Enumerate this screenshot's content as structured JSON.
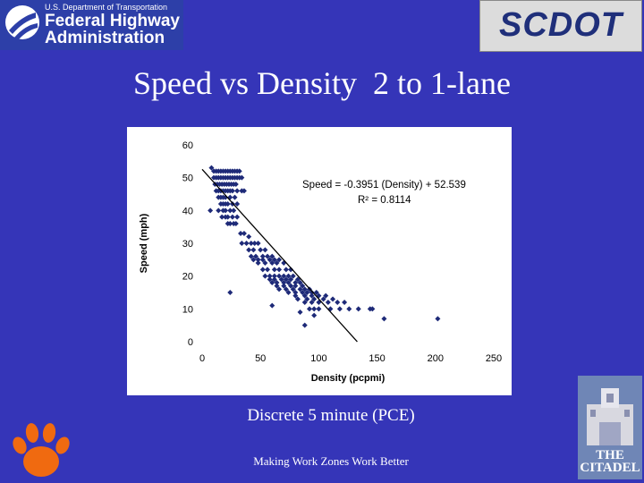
{
  "logos": {
    "fhwa_line1": "U.S. Department of Transportation",
    "fhwa_line2": "Federal Highway",
    "fhwa_line3": "Administration",
    "scdot": "SCDOT",
    "citadel": "THE\nCITADEL"
  },
  "slide": {
    "title": "Speed vs Density  2 to 1-lane",
    "subtitle": "Discrete 5 minute (PCE)",
    "footer": "Making Work Zones Work Better"
  },
  "colors": {
    "background": "#3535b8",
    "points": "#1e2a78",
    "trend_line": "#000000"
  },
  "chart_data": {
    "type": "scatter",
    "xlabel": "Density (pcpmi)",
    "ylabel": "Speed (mph)",
    "xlim": [
      0,
      250
    ],
    "ylim": [
      0,
      60
    ],
    "xticks": [
      "0",
      "50",
      "100",
      "150",
      "200",
      "250"
    ],
    "yticks": [
      "0",
      "10",
      "20",
      "30",
      "40",
      "50",
      "60"
    ],
    "equation": "Speed = -0.3951 (Density) + 52.539",
    "r_squared": "R² = 0.8114",
    "trendline": {
      "slope": -0.3951,
      "intercept": 52.539,
      "x": [
        0,
        133
      ]
    },
    "points": [
      [
        8,
        53
      ],
      [
        10,
        52
      ],
      [
        12,
        52
      ],
      [
        14,
        52
      ],
      [
        16,
        52
      ],
      [
        18,
        52
      ],
      [
        20,
        52
      ],
      [
        22,
        52
      ],
      [
        24,
        52
      ],
      [
        26,
        52
      ],
      [
        28,
        52
      ],
      [
        30,
        52
      ],
      [
        32,
        52
      ],
      [
        10,
        50
      ],
      [
        12,
        50
      ],
      [
        14,
        50
      ],
      [
        16,
        50
      ],
      [
        18,
        50
      ],
      [
        20,
        50
      ],
      [
        22,
        50
      ],
      [
        24,
        50
      ],
      [
        26,
        50
      ],
      [
        28,
        50
      ],
      [
        30,
        50
      ],
      [
        32,
        50
      ],
      [
        34,
        50
      ],
      [
        11,
        48
      ],
      [
        13,
        48
      ],
      [
        15,
        48
      ],
      [
        17,
        48
      ],
      [
        19,
        48
      ],
      [
        21,
        48
      ],
      [
        23,
        48
      ],
      [
        25,
        48
      ],
      [
        27,
        48
      ],
      [
        29,
        48
      ],
      [
        12,
        46
      ],
      [
        14,
        46
      ],
      [
        16,
        46
      ],
      [
        18,
        46
      ],
      [
        20,
        46
      ],
      [
        22,
        46
      ],
      [
        24,
        46
      ],
      [
        26,
        46
      ],
      [
        30,
        46
      ],
      [
        34,
        46
      ],
      [
        36,
        46
      ],
      [
        14,
        44
      ],
      [
        16,
        44
      ],
      [
        18,
        44
      ],
      [
        20,
        44
      ],
      [
        24,
        44
      ],
      [
        28,
        44
      ],
      [
        16,
        42
      ],
      [
        18,
        42
      ],
      [
        20,
        42
      ],
      [
        22,
        42
      ],
      [
        26,
        42
      ],
      [
        30,
        42
      ],
      [
        7,
        40
      ],
      [
        14,
        40
      ],
      [
        18,
        40
      ],
      [
        20,
        40
      ],
      [
        24,
        40
      ],
      [
        27,
        40
      ],
      [
        17,
        38
      ],
      [
        20,
        38
      ],
      [
        22,
        38
      ],
      [
        26,
        38
      ],
      [
        30,
        38
      ],
      [
        22,
        36
      ],
      [
        24,
        36
      ],
      [
        27,
        36
      ],
      [
        29,
        36
      ],
      [
        33,
        33
      ],
      [
        36,
        33
      ],
      [
        40,
        32
      ],
      [
        34,
        30
      ],
      [
        38,
        30
      ],
      [
        42,
        30
      ],
      [
        45,
        30
      ],
      [
        48,
        30
      ],
      [
        40,
        28
      ],
      [
        44,
        28
      ],
      [
        50,
        28
      ],
      [
        54,
        28
      ],
      [
        42,
        26
      ],
      [
        46,
        26
      ],
      [
        52,
        26
      ],
      [
        56,
        26
      ],
      [
        60,
        26
      ],
      [
        44,
        25
      ],
      [
        48,
        25
      ],
      [
        52,
        25
      ],
      [
        58,
        25
      ],
      [
        62,
        25
      ],
      [
        66,
        25
      ],
      [
        48,
        24
      ],
      [
        54,
        24
      ],
      [
        60,
        24
      ],
      [
        64,
        24
      ],
      [
        70,
        24
      ],
      [
        52,
        22
      ],
      [
        56,
        22
      ],
      [
        62,
        22
      ],
      [
        66,
        22
      ],
      [
        72,
        22
      ],
      [
        76,
        22
      ],
      [
        54,
        20
      ],
      [
        58,
        20
      ],
      [
        62,
        20
      ],
      [
        66,
        20
      ],
      [
        70,
        20
      ],
      [
        74,
        20
      ],
      [
        78,
        20
      ],
      [
        58,
        19
      ],
      [
        62,
        19
      ],
      [
        68,
        19
      ],
      [
        72,
        19
      ],
      [
        76,
        19
      ],
      [
        82,
        19
      ],
      [
        60,
        18
      ],
      [
        64,
        18
      ],
      [
        70,
        18
      ],
      [
        74,
        18
      ],
      [
        80,
        18
      ],
      [
        84,
        18
      ],
      [
        64,
        17
      ],
      [
        70,
        17
      ],
      [
        76,
        17
      ],
      [
        80,
        17
      ],
      [
        86,
        17
      ],
      [
        66,
        16
      ],
      [
        72,
        16
      ],
      [
        78,
        16
      ],
      [
        84,
        16
      ],
      [
        88,
        16
      ],
      [
        92,
        16
      ],
      [
        74,
        15
      ],
      [
        80,
        15
      ],
      [
        86,
        15
      ],
      [
        90,
        15
      ],
      [
        94,
        15
      ],
      [
        98,
        15
      ],
      [
        80,
        14
      ],
      [
        88,
        14
      ],
      [
        94,
        14
      ],
      [
        100,
        14
      ],
      [
        106,
        14
      ],
      [
        82,
        13
      ],
      [
        90,
        13
      ],
      [
        96,
        13
      ],
      [
        104,
        13
      ],
      [
        112,
        13
      ],
      [
        60,
        11
      ],
      [
        88,
        12
      ],
      [
        94,
        12
      ],
      [
        100,
        12
      ],
      [
        108,
        12
      ],
      [
        116,
        12
      ],
      [
        122,
        12
      ],
      [
        92,
        10
      ],
      [
        96,
        10
      ],
      [
        100,
        10
      ],
      [
        110,
        10
      ],
      [
        118,
        10
      ],
      [
        126,
        10
      ],
      [
        134,
        10
      ],
      [
        144,
        10
      ],
      [
        146,
        10
      ],
      [
        84,
        9
      ],
      [
        96,
        8
      ],
      [
        156,
        7
      ],
      [
        202,
        7
      ],
      [
        88,
        5
      ],
      [
        24,
        15
      ]
    ]
  }
}
